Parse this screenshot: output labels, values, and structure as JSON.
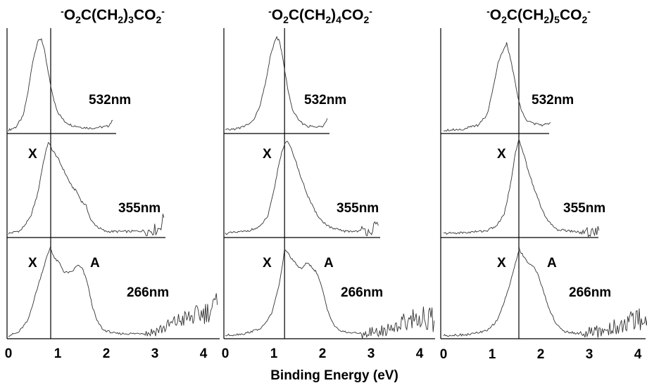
{
  "chart_data": {
    "type": "line",
    "xlabel": "Binding Energy (eV)",
    "x_ticks": [
      0,
      1,
      2,
      3,
      4
    ],
    "xlim": [
      0,
      4.3
    ],
    "panels": [
      {
        "title_parts": {
          "charge_left": "-",
          "body1": "O",
          "sub1": "2",
          "body2": "C(CH",
          "sub2": "2",
          "body3": ")",
          "sub3": "3",
          "body4": "CO",
          "sub4": "2",
          "charge_right": "-"
        },
        "vertical_line_eV": 0.87,
        "spectra": [
          {
            "wavelength": "532nm",
            "peak_labels": [],
            "points": [
              [
                0,
                0.02
              ],
              [
                0.15,
                0.05
              ],
              [
                0.3,
                0.16
              ],
              [
                0.4,
                0.4
              ],
              [
                0.5,
                0.72
              ],
              [
                0.6,
                0.92
              ],
              [
                0.68,
                0.95
              ],
              [
                0.74,
                0.83
              ],
              [
                0.82,
                0.6
              ],
              [
                0.92,
                0.35
              ],
              [
                1.02,
                0.2
              ],
              [
                1.15,
                0.11
              ],
              [
                1.3,
                0.07
              ],
              [
                1.5,
                0.05
              ],
              [
                1.7,
                0.04
              ],
              [
                1.9,
                0.05
              ],
              [
                2.05,
                0.06
              ],
              [
                2.15,
                0.12
              ]
            ]
          },
          {
            "wavelength": "355nm",
            "peak_labels": [
              "X"
            ],
            "points": [
              [
                0,
                0.02
              ],
              [
                0.25,
                0.05
              ],
              [
                0.45,
                0.18
              ],
              [
                0.6,
                0.42
              ],
              [
                0.72,
                0.75
              ],
              [
                0.82,
                0.95
              ],
              [
                0.9,
                0.87
              ],
              [
                1.0,
                0.8
              ],
              [
                1.1,
                0.7
              ],
              [
                1.2,
                0.6
              ],
              [
                1.3,
                0.5
              ],
              [
                1.4,
                0.45
              ],
              [
                1.5,
                0.35
              ],
              [
                1.6,
                0.3
              ],
              [
                1.7,
                0.15
              ],
              [
                1.85,
                0.08
              ],
              [
                2.0,
                0.04
              ],
              [
                2.5,
                0.04
              ],
              [
                2.9,
                0.05
              ],
              [
                3.1,
                0.07
              ],
              [
                3.2,
                0.18
              ]
            ]
          },
          {
            "wavelength": "266nm",
            "peak_labels": [
              "X",
              "A"
            ],
            "points": [
              [
                0,
                0.02
              ],
              [
                0.2,
                0.05
              ],
              [
                0.4,
                0.18
              ],
              [
                0.55,
                0.45
              ],
              [
                0.68,
                0.68
              ],
              [
                0.78,
                0.85
              ],
              [
                0.86,
                0.97
              ],
              [
                0.95,
                0.85
              ],
              [
                1.05,
                0.8
              ],
              [
                1.15,
                0.7
              ],
              [
                1.3,
                0.7
              ],
              [
                1.42,
                0.78
              ],
              [
                1.52,
                0.74
              ],
              [
                1.62,
                0.6
              ],
              [
                1.72,
                0.35
              ],
              [
                1.82,
                0.18
              ],
              [
                1.95,
                0.08
              ],
              [
                2.2,
                0.04
              ],
              [
                2.6,
                0.04
              ],
              [
                2.9,
                0.05
              ],
              [
                3.2,
                0.1
              ],
              [
                3.5,
                0.18
              ],
              [
                3.8,
                0.22
              ],
              [
                4.1,
                0.28
              ],
              [
                4.3,
                0.35
              ]
            ]
          }
        ]
      },
      {
        "title_parts": {
          "charge_left": "-",
          "body1": "O",
          "sub1": "2",
          "body2": "C(CH",
          "sub2": "2",
          "body3": ")",
          "sub3": "4",
          "body4": "CO",
          "sub4": "2",
          "charge_right": "-"
        },
        "vertical_line_eV": 1.22,
        "spectra": [
          {
            "wavelength": "532nm",
            "peak_labels": [],
            "points": [
              [
                0,
                0.02
              ],
              [
                0.3,
                0.04
              ],
              [
                0.55,
                0.1
              ],
              [
                0.7,
                0.24
              ],
              [
                0.82,
                0.48
              ],
              [
                0.92,
                0.75
              ],
              [
                1.0,
                0.9
              ],
              [
                1.06,
                0.96
              ],
              [
                1.12,
                0.92
              ],
              [
                1.2,
                0.7
              ],
              [
                1.3,
                0.4
              ],
              [
                1.4,
                0.2
              ],
              [
                1.55,
                0.1
              ],
              [
                1.7,
                0.06
              ],
              [
                1.9,
                0.05
              ],
              [
                2.0,
                0.06
              ],
              [
                2.1,
                0.14
              ]
            ]
          },
          {
            "wavelength": "355nm",
            "peak_labels": [
              "X"
            ],
            "points": [
              [
                0,
                0.02
              ],
              [
                0.4,
                0.04
              ],
              [
                0.7,
                0.08
              ],
              [
                0.88,
                0.2
              ],
              [
                1.0,
                0.45
              ],
              [
                1.1,
                0.72
              ],
              [
                1.18,
                0.88
              ],
              [
                1.25,
                0.96
              ],
              [
                1.32,
                0.92
              ],
              [
                1.42,
                0.8
              ],
              [
                1.55,
                0.6
              ],
              [
                1.7,
                0.4
              ],
              [
                1.85,
                0.24
              ],
              [
                2.0,
                0.14
              ],
              [
                2.2,
                0.07
              ],
              [
                2.5,
                0.04
              ],
              [
                2.9,
                0.05
              ],
              [
                3.1,
                0.08
              ],
              [
                3.15,
                0.1
              ]
            ]
          },
          {
            "wavelength": "266nm",
            "peak_labels": [
              "X",
              "A"
            ],
            "points": [
              [
                0,
                0.02
              ],
              [
                0.4,
                0.04
              ],
              [
                0.75,
                0.1
              ],
              [
                0.95,
                0.25
              ],
              [
                1.08,
                0.5
              ],
              [
                1.16,
                0.72
              ],
              [
                1.22,
                0.95
              ],
              [
                1.3,
                0.9
              ],
              [
                1.4,
                0.82
              ],
              [
                1.55,
                0.74
              ],
              [
                1.68,
                0.8
              ],
              [
                1.78,
                0.76
              ],
              [
                1.88,
                0.7
              ],
              [
                1.98,
                0.55
              ],
              [
                2.1,
                0.3
              ],
              [
                2.25,
                0.12
              ],
              [
                2.4,
                0.06
              ],
              [
                2.8,
                0.04
              ],
              [
                3.2,
                0.06
              ],
              [
                3.5,
                0.12
              ],
              [
                3.8,
                0.2
              ],
              [
                4.1,
                0.22
              ],
              [
                4.3,
                0.18
              ]
            ]
          }
        ]
      },
      {
        "title_parts": {
          "charge_left": "-",
          "body1": "O",
          "sub1": "2",
          "body2": "C(CH",
          "sub2": "2",
          "body3": ")",
          "sub3": "5",
          "body4": "CO",
          "sub4": "2",
          "charge_right": "-"
        },
        "vertical_line_eV": 1.55,
        "spectra": [
          {
            "wavelength": "532nm",
            "peak_labels": [],
            "points": [
              [
                0,
                0.02
              ],
              [
                0.4,
                0.03
              ],
              [
                0.7,
                0.07
              ],
              [
                0.9,
                0.18
              ],
              [
                1.02,
                0.45
              ],
              [
                1.12,
                0.7
              ],
              [
                1.22,
                0.82
              ],
              [
                1.3,
                0.9
              ],
              [
                1.36,
                0.78
              ],
              [
                1.44,
                0.6
              ],
              [
                1.52,
                0.38
              ],
              [
                1.6,
                0.22
              ],
              [
                1.72,
                0.12
              ],
              [
                1.9,
                0.08
              ],
              [
                2.05,
                0.07
              ],
              [
                2.2,
                0.1
              ]
            ]
          },
          {
            "wavelength": "355nm",
            "peak_labels": [
              "X"
            ],
            "points": [
              [
                0,
                0.02
              ],
              [
                0.5,
                0.03
              ],
              [
                0.9,
                0.05
              ],
              [
                1.1,
                0.1
              ],
              [
                1.25,
                0.22
              ],
              [
                1.38,
                0.52
              ],
              [
                1.48,
                0.85
              ],
              [
                1.55,
                0.97
              ],
              [
                1.62,
                0.88
              ],
              [
                1.72,
                0.7
              ],
              [
                1.85,
                0.5
              ],
              [
                2.0,
                0.3
              ],
              [
                2.15,
                0.14
              ],
              [
                2.35,
                0.06
              ],
              [
                2.7,
                0.04
              ],
              [
                3.0,
                0.04
              ],
              [
                3.2,
                0.05
              ]
            ]
          },
          {
            "wavelength": "266nm",
            "peak_labels": [
              "X",
              "A"
            ],
            "points": [
              [
                0,
                0.02
              ],
              [
                0.5,
                0.03
              ],
              [
                0.9,
                0.07
              ],
              [
                1.1,
                0.18
              ],
              [
                1.25,
                0.38
              ],
              [
                1.38,
                0.6
              ],
              [
                1.48,
                0.8
              ],
              [
                1.56,
                0.95
              ],
              [
                1.64,
                0.88
              ],
              [
                1.75,
                0.8
              ],
              [
                1.85,
                0.76
              ],
              [
                1.95,
                0.68
              ],
              [
                2.05,
                0.5
              ],
              [
                2.18,
                0.3
              ],
              [
                2.32,
                0.14
              ],
              [
                2.5,
                0.06
              ],
              [
                2.8,
                0.04
              ],
              [
                3.2,
                0.06
              ],
              [
                3.6,
                0.12
              ],
              [
                3.9,
                0.18
              ],
              [
                4.2,
                0.22
              ]
            ]
          }
        ]
      }
    ]
  }
}
